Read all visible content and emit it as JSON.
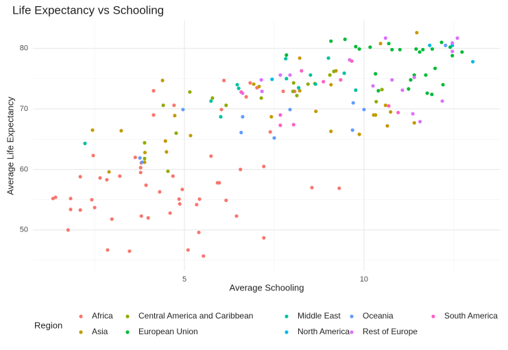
{
  "chart_data": {
    "type": "scatter",
    "title": "Life Expectancy vs Schooling",
    "x_label": "Average Schooling",
    "y_label": "Average Life Expectancy",
    "legend_title": "Region",
    "legend_position": "bottom",
    "grid": true,
    "xlim": [
      0.78,
      13.8
    ],
    "ylim": [
      43.3,
      84.6
    ],
    "xticks": [
      5,
      10
    ],
    "yticks": [
      50,
      60,
      70,
      80
    ],
    "x_minor_grid": [
      2.5,
      7.5,
      12.5
    ],
    "y_minor_grid": [
      45,
      55,
      65,
      75
    ],
    "series": [
      {
        "name": "Africa",
        "color": "#F8766D",
        "x": [
          1.34,
          1.41,
          1.83,
          1.83,
          2.1,
          2.1,
          1.76,
          2.42,
          2.46,
          2.5,
          2.65,
          2.84,
          2.98,
          3.2,
          2.86,
          3.47,
          3.63,
          3.78,
          3.8,
          3.78,
          3.93,
          3.8,
          3.99,
          4.14,
          4.14,
          4.31,
          4.6,
          4.68,
          4.71,
          4.85,
          4.87,
          4.94,
          5.1,
          5.34,
          5.42,
          5.4,
          5.53,
          5.74,
          5.92,
          5.97,
          6.03,
          6.1,
          6.16,
          6.45,
          6.56,
          6.72,
          6.83,
          7.02,
          7.21,
          7.21,
          7.39,
          7.75,
          8.55,
          9.31,
          8.07
        ],
        "values": [
          55.2,
          55.4,
          55.2,
          53.4,
          58.8,
          53.3,
          50.0,
          55.0,
          62.3,
          53.7,
          58.6,
          58.3,
          51.8,
          58.9,
          46.7,
          46.5,
          62.0,
          60.3,
          61.1,
          59.5,
          57.4,
          52.3,
          52.0,
          69.0,
          73.0,
          56.3,
          52.8,
          58.9,
          70.6,
          55.1,
          54.3,
          56.7,
          46.7,
          54.2,
          55.1,
          49.6,
          45.7,
          62.2,
          57.8,
          57.8,
          69.9,
          74.7,
          54.9,
          52.3,
          60.0,
          72.0,
          74.3,
          73.5,
          60.5,
          48.7,
          66.2,
          72.9,
          57.0,
          56.9,
          72.9
        ]
      },
      {
        "name": "Asia",
        "color": "#C49A00",
        "x": [
          2.44,
          2.9,
          3.24,
          3.89,
          3.9,
          4.39,
          4.47,
          4.5,
          4.73,
          5.17,
          6.93,
          7.08,
          7.42,
          8.21,
          8.21,
          8.63,
          8.66,
          9.08,
          9.08,
          9.22,
          9.6,
          9.87,
          10.27,
          10.32,
          10.46,
          10.6,
          10.65,
          11.4,
          11.47,
          10.74
        ],
        "values": [
          66.5,
          59.6,
          66.4,
          61.2,
          62.8,
          74.7,
          64.7,
          62.9,
          68.9,
          65.6,
          74.1,
          73.7,
          68.7,
          78.4,
          73.0,
          74.2,
          69.6,
          66.3,
          74.0,
          76.3,
          78.1,
          65.8,
          69.0,
          69.0,
          80.8,
          70.6,
          67.2,
          67.7,
          82.6,
          69.5
        ]
      },
      {
        "name": "Central America and Caribbean",
        "color": "#93AA00",
        "x": [
          3.89,
          3.89,
          4.41,
          4.54,
          4.77,
          5.15,
          5.78,
          6.16,
          7.14,
          8.02,
          8.13,
          8.44,
          9.05,
          9.16,
          10.34,
          10.5,
          8.04
        ],
        "values": [
          61.8,
          64.4,
          70.6,
          59.7,
          66.0,
          72.8,
          71.8,
          70.6,
          71.8,
          72.9,
          72.2,
          74.1,
          75.6,
          76.2,
          71.2,
          73.2,
          74.3
        ]
      },
      {
        "name": "European Union",
        "color": "#00BA38",
        "x": [
          7.84,
          9.08,
          9.47,
          9.77,
          9.87,
          10.32,
          10.4,
          10.69,
          10.78,
          11.0,
          11.24,
          11.3,
          11.45,
          11.55,
          11.64,
          11.72,
          11.76,
          11.89,
          11.98,
          12.16,
          12.2,
          12.4,
          12.46,
          12.73,
          11.9,
          10.17,
          11.4
        ],
        "values": [
          78.9,
          81.2,
          81.5,
          80.3,
          79.9,
          75.8,
          73.0,
          80.8,
          79.8,
          79.8,
          73.3,
          74.8,
          79.9,
          79.4,
          79.8,
          75.6,
          72.6,
          72.4,
          76.7,
          81.0,
          74.0,
          80.2,
          78.8,
          79.4,
          79.9,
          80.2,
          75.6
        ]
      },
      {
        "name": "Middle East",
        "color": "#00C19F",
        "x": [
          2.23,
          5.74,
          6.01,
          6.47,
          6.51,
          7.84,
          8.51,
          8.65,
          9.01,
          9.45,
          9.77,
          7.82,
          8.18
        ],
        "values": [
          64.3,
          71.3,
          68.7,
          74.0,
          73.4,
          75.0,
          75.6,
          74.1,
          78.4,
          75.9,
          73.1,
          78.3,
          73.5
        ]
      },
      {
        "name": "North America",
        "color": "#00B9E3",
        "x": [
          7.44,
          11.83,
          12.46,
          13.03
        ],
        "values": [
          74.9,
          80.5,
          80.5,
          77.8
        ]
      },
      {
        "name": "Oceania",
        "color": "#619CFF",
        "x": [
          3.76,
          3.82,
          4.96,
          6.58,
          6.62,
          7.5,
          7.94,
          9.68,
          9.7,
          10.0,
          12.27
        ],
        "values": [
          61.9,
          61.2,
          69.9,
          66.1,
          68.7,
          65.2,
          69.9,
          66.5,
          71.0,
          69.9,
          80.5
        ]
      },
      {
        "name": "Rest of Europe",
        "color": "#DB72FB",
        "x": [
          6.62,
          7.16,
          7.14,
          7.67,
          7.94,
          9.6,
          10.25,
          10.6,
          10.78,
          11.07,
          11.4,
          11.56,
          12.46,
          12.46,
          12.6,
          12.18,
          11.36
        ],
        "values": [
          72.6,
          72.9,
          74.8,
          75.6,
          75.6,
          78.1,
          73.8,
          81.7,
          74.8,
          73.1,
          75.2,
          67.9,
          80.9,
          79.5,
          81.7,
          71.3,
          69.2
        ]
      },
      {
        "name": "South America",
        "color": "#FF61C3",
        "x": [
          6.58,
          7.67,
          7.67,
          8.04,
          8.26,
          8.87,
          9.35,
          9.66,
          10.69,
          10.95
        ],
        "values": [
          72.8,
          69.0,
          67.3,
          67.4,
          76.3,
          74.5,
          74.8,
          77.9,
          70.5,
          69.4
        ]
      }
    ]
  }
}
